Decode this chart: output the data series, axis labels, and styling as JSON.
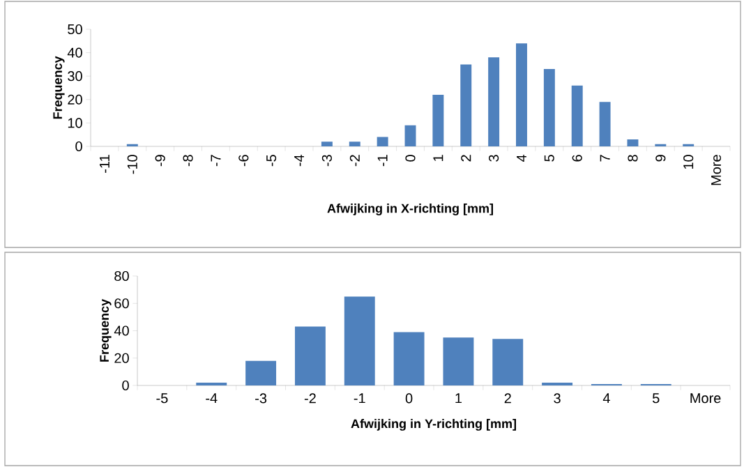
{
  "chart_data": [
    {
      "type": "bar",
      "xlabel": "Afwijking in X-richting [mm]",
      "ylabel": "Frequency",
      "categories": [
        "-11",
        "-10",
        "-9",
        "-8",
        "-7",
        "-6",
        "-5",
        "-4",
        "-3",
        "-2",
        "-1",
        "0",
        "1",
        "2",
        "3",
        "4",
        "5",
        "6",
        "7",
        "8",
        "9",
        "10",
        "More"
      ],
      "values": [
        0,
        1,
        0,
        0,
        0,
        0,
        0,
        0,
        2,
        2,
        4,
        9,
        22,
        35,
        38,
        44,
        33,
        26,
        19,
        3,
        1,
        1,
        0
      ],
      "color": "#4f81bd",
      "ylim": [
        0,
        50
      ],
      "yticks": [
        0,
        10,
        20,
        30,
        40,
        50
      ]
    },
    {
      "type": "bar",
      "xlabel": "Afwijking in Y-richting [mm]",
      "ylabel": "Frequency",
      "categories": [
        "-5",
        "-4",
        "-3",
        "-2",
        "-1",
        "0",
        "1",
        "2",
        "3",
        "4",
        "5",
        "More"
      ],
      "values": [
        0,
        2,
        18,
        43,
        65,
        39,
        35,
        34,
        2,
        1,
        1,
        0
      ],
      "color": "#4f81bd",
      "ylim": [
        0,
        80
      ],
      "yticks": [
        0,
        20,
        40,
        60,
        80
      ]
    }
  ]
}
